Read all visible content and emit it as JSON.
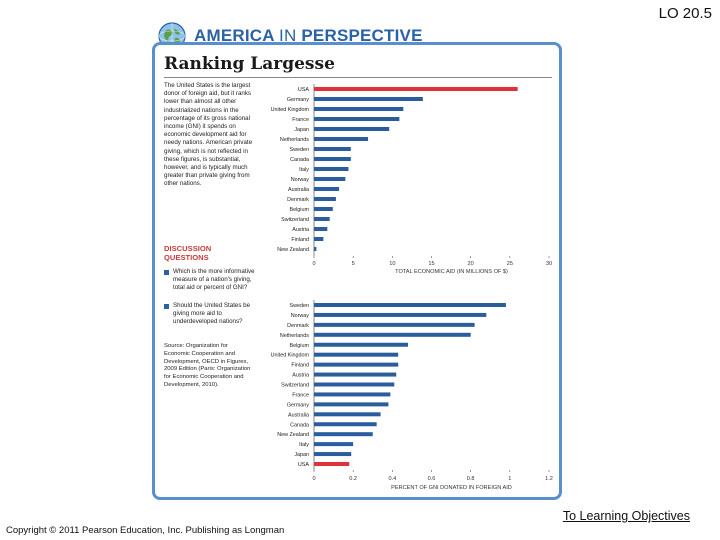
{
  "slide": {
    "lo_label": "LO 20.5",
    "copyright": "Copyright © 2011 Pearson Education, Inc. Publishing as Longman",
    "link_text": "To Learning Objectives"
  },
  "header": {
    "banner_part1": "AMERICA",
    "banner_part2": "IN",
    "banner_part3": "PERSPECTIVE",
    "title": "Ranking Largesse"
  },
  "sidebar": {
    "intro": "The United States is the largest donor of foreign aid, but it ranks lower than almost all other industrialized nations in the percentage of its gross national income (GNI) it spends on economic development aid for needy nations. American private giving, which is not reflected in these figures, is substantial, however, and is typically much greater than private giving from other nations.",
    "discussion_title_1": "DISCUSSION",
    "discussion_title_2": "QUESTIONS",
    "questions": [
      "Which is the more informative measure of a nation's giving, total aid or percent of GNI?",
      "Should the United States be giving more aid to underdeveloped nations?"
    ],
    "source": "Source: Organization for Economic Cooperation and Development, OECD in Figures, 2009 Edition (Paris: Organization for Economic Cooperation and Development, 2010)."
  },
  "colors": {
    "bar": "#2a5d9e",
    "highlight": "#e0303a",
    "frame": "#5a8fcf",
    "banner": "#2a62a8",
    "accent_red": "#d03a3a"
  },
  "chart_data": [
    {
      "type": "bar",
      "orientation": "horizontal",
      "xlabel": "TOTAL ECONOMIC AID (IN MILLIONS OF $)",
      "xlim": [
        0,
        30
      ],
      "ticks": [
        0,
        5,
        10,
        15,
        20,
        25,
        30
      ],
      "highlight": "USA",
      "categories": [
        "USA",
        "Germany",
        "United Kingdom",
        "France",
        "Japan",
        "Netherlands",
        "Sweden",
        "Canada",
        "Italy",
        "Norway",
        "Australia",
        "Denmark",
        "Belgium",
        "Switzerland",
        "Austria",
        "Finland",
        "New Zealand"
      ],
      "values": [
        26.0,
        13.9,
        11.4,
        10.9,
        9.6,
        6.9,
        4.7,
        4.7,
        4.4,
        4.0,
        3.2,
        2.8,
        2.4,
        2.0,
        1.7,
        1.2,
        0.3
      ]
    },
    {
      "type": "bar",
      "orientation": "horizontal",
      "xlabel": "PERCENT OF GNI DONATED IN FOREIGN AID",
      "xlim": [
        0,
        1.2
      ],
      "ticks": [
        0,
        0.2,
        0.4,
        0.6,
        0.8,
        1,
        1.2
      ],
      "tick_labels": [
        "0",
        "0.2",
        "0.4",
        "0.6",
        "0.8",
        "1",
        "1.2"
      ],
      "highlight": "USA",
      "categories": [
        "Sweden",
        "Norway",
        "Denmark",
        "Netherlands",
        "Belgium",
        "United Kingdom",
        "Finland",
        "Austria",
        "Switzerland",
        "France",
        "Germany",
        "Australia",
        "Canada",
        "New Zealand",
        "Italy",
        "Japan",
        "USA"
      ],
      "values": [
        0.98,
        0.88,
        0.82,
        0.8,
        0.48,
        0.43,
        0.43,
        0.42,
        0.41,
        0.39,
        0.38,
        0.34,
        0.32,
        0.3,
        0.2,
        0.19,
        0.18
      ]
    }
  ]
}
